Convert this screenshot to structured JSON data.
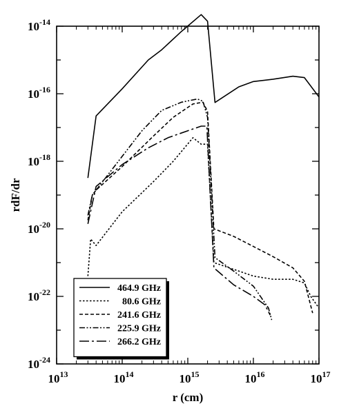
{
  "chart_data": {
    "type": "line",
    "title": "",
    "xlabel": "r (cm)",
    "ylabel": "rdF/dr",
    "x_scale": "log",
    "y_scale": "log",
    "xlim": [
      10000000000000.0,
      1e+17
    ],
    "ylim": [
      1e-24,
      1e-14
    ],
    "x_ticks": [
      {
        "base": "10",
        "exp": "13"
      },
      {
        "base": "10",
        "exp": "14"
      },
      {
        "base": "10",
        "exp": "15"
      },
      {
        "base": "10",
        "exp": "16"
      },
      {
        "base": "10",
        "exp": "17"
      }
    ],
    "y_ticks": [
      {
        "base": "10",
        "exp": "-14"
      },
      {
        "base": "10",
        "exp": "-16"
      },
      {
        "base": "10",
        "exp": "-18"
      },
      {
        "base": "10",
        "exp": "-20"
      },
      {
        "base": "10",
        "exp": "-22"
      },
      {
        "base": "10",
        "exp": "-24"
      }
    ],
    "grid": false,
    "legend_position": "bottom-left",
    "series": [
      {
        "name": "464.9 GHz",
        "dash": "solid",
        "x": [
          30000000000000.0,
          40000000000000.0,
          100000000000000.0,
          250000000000000.0,
          400000000000000.0,
          800000000000000.0,
          1600000000000000.0,
          2000000000000000.0,
          2600000000000000.0,
          6000000000000000.0,
          1e+16,
          2e+16,
          4e+16,
          6e+16,
          1e+17
        ],
        "y": [
          3.2e-19,
          2.2e-17,
          1.4e-16,
          1e-15,
          2e-15,
          7e-15,
          2.2e-14,
          1.4e-14,
          5.5e-17,
          1.6e-16,
          2.3e-16,
          2.7e-16,
          3.3e-16,
          3e-16,
          8e-17
        ]
      },
      {
        "name": "80.6 GHz",
        "dash": "dotted",
        "x": [
          30000000000000.0,
          33000000000000.0,
          40000000000000.0,
          100000000000000.0,
          300000000000000.0,
          600000000000000.0,
          1200000000000000.0,
          1600000000000000.0,
          2000000000000000.0,
          2500000000000000.0,
          6000000000000000.0,
          1e+16,
          2e+16,
          4e+16,
          6e+16,
          7.5e+16,
          1e+17
        ],
        "y": [
          4e-22,
          5e-21,
          3.2e-21,
          3.2e-20,
          2.5e-19,
          1e-18,
          5e-18,
          3.2e-18,
          3.2e-18,
          1e-21,
          5.6e-22,
          4e-22,
          3.2e-22,
          3.2e-22,
          2.5e-22,
          1e-22,
          4.5e-23
        ]
      },
      {
        "name": "241.6 GHz",
        "dash": "dashed",
        "x": [
          30000000000000.0,
          35000000000000.0,
          40000000000000.0,
          100000000000000.0,
          300000000000000.0,
          600000000000000.0,
          1200000000000000.0,
          1700000000000000.0,
          2000000000000000.0,
          2500000000000000.0,
          5000000000000000.0,
          1e+16,
          2e+16,
          4e+16,
          6e+16,
          8e+16
        ],
        "y": [
          1.8e-20,
          1e-19,
          1.4e-19,
          7e-19,
          5.6e-18,
          2e-17,
          5e-17,
          5.6e-17,
          3e-17,
          1e-20,
          6e-21,
          3e-21,
          1.5e-21,
          7e-22,
          2.8e-22,
          3.2e-23
        ]
      },
      {
        "name": "225.9 GHz",
        "dash": "dashdotdot",
        "x": [
          30000000000000.0,
          35000000000000.0,
          40000000000000.0,
          100000000000000.0,
          200000000000000.0,
          400000000000000.0,
          800000000000000.0,
          1400000000000000.0,
          1700000000000000.0,
          2000000000000000.0,
          2600000000000000.0,
          5000000000000000.0,
          1e+16,
          1.7e+16,
          1.9e+16
        ],
        "y": [
          2.5e-20,
          1e-19,
          1.4e-19,
          1.4e-18,
          8e-18,
          3.2e-17,
          5.6e-17,
          7e-17,
          6e-17,
          2e-17,
          1.4e-21,
          5.6e-22,
          2e-22,
          4.5e-23,
          2e-23
        ]
      },
      {
        "name": "266.2 GHz",
        "dash": "longdashdot",
        "x": [
          30000000000000.0,
          40000000000000.0,
          100000000000000.0,
          250000000000000.0,
          500000000000000.0,
          1000000000000000.0,
          1600000000000000.0,
          1950000000000000.0,
          2500000000000000.0,
          5000000000000000.0,
          1e+16,
          1.5e+16,
          1.8e+16
        ],
        "y": [
          1.4e-20,
          1.8e-19,
          8e-19,
          2.5e-18,
          5e-18,
          8e-18,
          1.1e-17,
          1.1e-17,
          7e-22,
          2.2e-22,
          1e-22,
          5.6e-23,
          2.8e-23
        ]
      }
    ]
  }
}
